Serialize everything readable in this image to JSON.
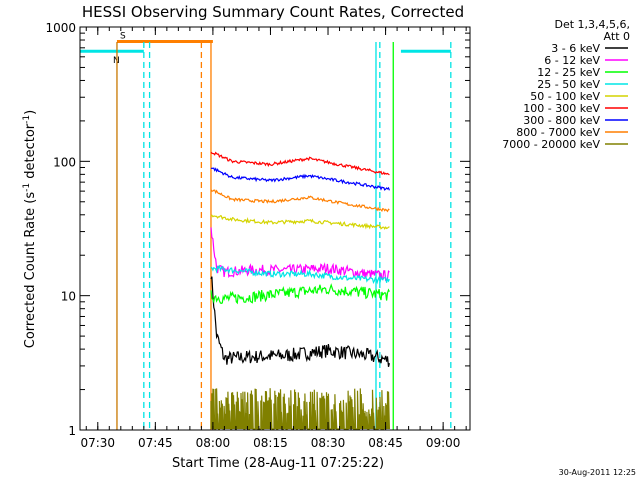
{
  "chart_data": {
    "type": "line",
    "title": "HESSI Observing Summary Count Rates, Corrected",
    "xlabel": "Start Time (28-Aug-11 07:25:22)",
    "ylabel_prefix": "Corrected Count Rate (s",
    "ylabel_sup1": "-1",
    "ylabel_mid": " detector",
    "ylabel_sup2": "-1",
    "ylabel_suffix": ")",
    "ylabel": "Corrected Count Rate (s-1 detector-1)",
    "yscale": "log",
    "ylim": [
      1,
      1000
    ],
    "xlim": [
      "07:25:22",
      "09:07:00"
    ],
    "x_ticks": [
      "07:30",
      "07:45",
      "08:00",
      "08:15",
      "08:30",
      "08:45",
      "09:00"
    ],
    "y_ticks": [
      "1",
      "10",
      "100",
      "1000"
    ],
    "grid": false,
    "legend_position": "right",
    "legend_header": [
      "Det 1,3,4,5,6,",
      "Att 0"
    ],
    "footer_date": "30-Aug-2011 12:25",
    "flags": [
      {
        "label": "S",
        "start": "07:35:00",
        "end": "08:00:00",
        "level": 780,
        "color": "#ff7f00"
      },
      {
        "label": "N",
        "start": "07:25:22",
        "end": "07:42:00",
        "level": 660,
        "color": "#00e5e5"
      },
      {
        "label": "",
        "start": "08:49:00",
        "end": "09:02:00",
        "level": 660,
        "color": "#00e5e5"
      }
    ],
    "vlines": [
      {
        "time": "07:35:00",
        "color": "#c87800",
        "style": "solid"
      },
      {
        "time": "07:42:00",
        "color": "#00e5e5",
        "style": "dashed"
      },
      {
        "time": "07:43:30",
        "color": "#00e5e5",
        "style": "dashed"
      },
      {
        "time": "07:57:00",
        "color": "#ff7f00",
        "style": "dashed"
      },
      {
        "time": "07:59:30",
        "color": "#ff7f00",
        "style": "solid"
      },
      {
        "time": "08:42:30",
        "color": "#00e5e5",
        "style": "solid"
      },
      {
        "time": "08:43:30",
        "color": "#00e5e5",
        "style": "dashed"
      },
      {
        "time": "08:47:00",
        "color": "#00ff00",
        "style": "solid"
      },
      {
        "time": "09:02:00",
        "color": "#00e5e5",
        "style": "dashed"
      }
    ],
    "data_start": "07:59:30",
    "data_end": "08:46:00",
    "series": [
      {
        "name": "3 - 6 keV",
        "color": "#000000",
        "x": [
          "07:59:30",
          "08:01:00",
          "08:03:00",
          "08:10:00",
          "08:20:00",
          "08:30:00",
          "08:40:00",
          "08:46:00"
        ],
        "y": [
          15,
          5,
          3.4,
          3.5,
          3.6,
          3.9,
          3.6,
          3.3
        ],
        "noise": 0.12
      },
      {
        "name": "6 - 12 keV",
        "color": "#ff00ff",
        "x": [
          "07:59:30",
          "08:01:00",
          "08:03:00",
          "08:10:00",
          "08:20:00",
          "08:30:00",
          "08:40:00",
          "08:46:00"
        ],
        "y": [
          32,
          16,
          15,
          15.5,
          15.5,
          16,
          14.5,
          14
        ],
        "noise": 0.09
      },
      {
        "name": "12 - 25 keV",
        "color": "#00ff00",
        "x": [
          "07:59:30",
          "08:03:00",
          "08:10:00",
          "08:20:00",
          "08:30:00",
          "08:40:00",
          "08:46:00"
        ],
        "y": [
          10,
          9.5,
          9.8,
          10.5,
          11.2,
          10.5,
          10
        ],
        "noise": 0.1
      },
      {
        "name": "25 - 50 keV",
        "color": "#00e5e5",
        "x": [
          "07:59:30",
          "08:05:00",
          "08:15:00",
          "08:25:00",
          "08:35:00",
          "08:46:00"
        ],
        "y": [
          16,
          15.5,
          14.5,
          14.5,
          13.5,
          13
        ],
        "noise": 0.05
      },
      {
        "name": "50 - 100 keV",
        "color": "#d4d400",
        "x": [
          "07:59:30",
          "08:05:00",
          "08:15:00",
          "08:25:00",
          "08:35:00",
          "08:46:00"
        ],
        "y": [
          40,
          37,
          35,
          36,
          34,
          32
        ],
        "noise": 0.03
      },
      {
        "name": "100 - 300 keV",
        "color": "#ff0000",
        "x": [
          "07:59:30",
          "08:05:00",
          "08:15:00",
          "08:25:00",
          "08:35:00",
          "08:46:00"
        ],
        "y": [
          118,
          100,
          95,
          105,
          92,
          80
        ],
        "noise": 0.025
      },
      {
        "name": "300 - 800 keV",
        "color": "#0000ff",
        "x": [
          "07:59:30",
          "08:05:00",
          "08:15:00",
          "08:25:00",
          "08:35:00",
          "08:46:00"
        ],
        "y": [
          90,
          76,
          72,
          78,
          70,
          62
        ],
        "noise": 0.025
      },
      {
        "name": "800 - 7000 keV",
        "color": "#ff7f00",
        "x": [
          "07:59:30",
          "08:05:00",
          "08:15:00",
          "08:25:00",
          "08:35:00",
          "08:46:00"
        ],
        "y": [
          62,
          52,
          50,
          54,
          48,
          43
        ],
        "noise": 0.025
      },
      {
        "name": "7000 - 20000 keV",
        "color": "#808000",
        "x": [
          "07:59:30",
          "08:46:00"
        ],
        "y": [
          1.6,
          1.6
        ],
        "noise": 0.2,
        "style": "spiky"
      }
    ]
  }
}
